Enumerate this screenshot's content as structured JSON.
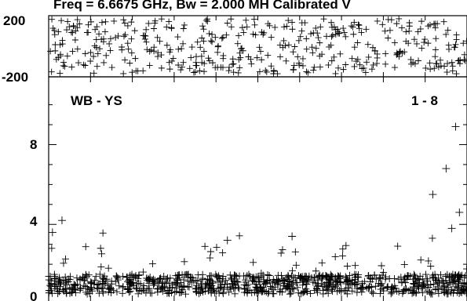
{
  "header": {
    "title": "Freq = 6.6675 GHz, Bw = 2.000 MH  Calibrated V"
  },
  "chart_data": [
    {
      "type": "scatter",
      "panel": "phase",
      "yticks": [
        "200",
        "-200"
      ],
      "ylim": [
        -200,
        200
      ],
      "xlim": [
        0,
        1100
      ],
      "marker": "plus",
      "series": [
        {
          "x_range": [
            0,
            1100
          ],
          "y_center": 0,
          "y_spread": 180,
          "count": 420,
          "seed": 7
        }
      ]
    },
    {
      "type": "scatter",
      "panel": "amplitude",
      "labels": {
        "left": "WB - YS",
        "right": "1 - 8"
      },
      "yticks": [
        "0",
        "4",
        "8"
      ],
      "ylim": [
        0,
        11.4
      ],
      "xlim": [
        0,
        1100
      ],
      "marker": "plus",
      "series": [
        {
          "x_range": [
            0,
            1100
          ],
          "y_median": 1.0,
          "y_spread": 0.9,
          "count": 900,
          "seed": 11,
          "spikes": [
            {
              "x": 1010,
              "y": 5.5
            },
            {
              "x": 1045,
              "y": 6.8
            },
            {
              "x": 1070,
              "y": 8.9
            },
            {
              "x": 1080,
              "y": 4.6
            },
            {
              "x": 1060,
              "y": 3.8
            },
            {
              "x": 35,
              "y": 4.2
            },
            {
              "x": 10,
              "y": 3.6
            },
            {
              "x": 470,
              "y": 3.2
            },
            {
              "x": 640,
              "y": 3.4
            }
          ]
        }
      ]
    }
  ]
}
